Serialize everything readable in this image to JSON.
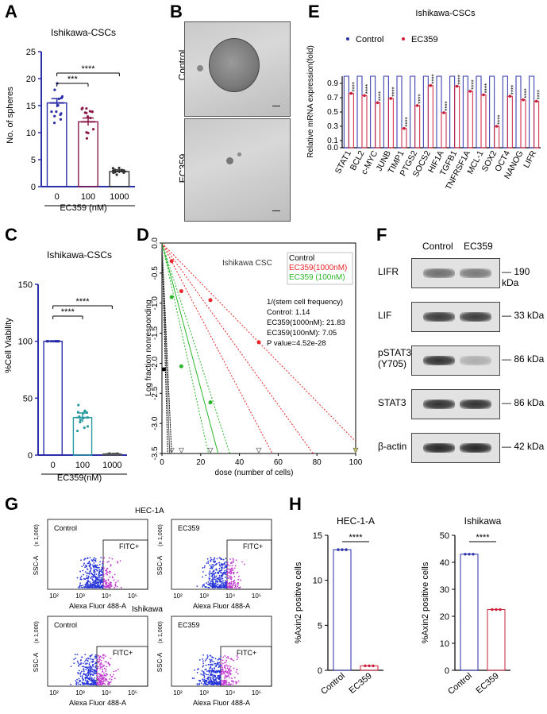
{
  "panel_labels": {
    "A": "A",
    "B": "B",
    "C": "C",
    "D": "D",
    "E": "E",
    "F": "F",
    "G": "G",
    "H": "H"
  },
  "panel_a": {
    "chart_data": {
      "type": "bar",
      "title": "Ishikawa-CSCs",
      "ylabel": "No. of spheres",
      "xlabel": "EC359 (nM)",
      "categories": [
        "0",
        "100",
        "1000"
      ],
      "values": [
        15.5,
        12.0,
        2.8
      ],
      "errors": [
        0.8,
        0.7,
        0.3
      ],
      "ylim": [
        0,
        25
      ],
      "yticks": [
        "0",
        "5",
        "10",
        "15",
        "20",
        "25"
      ],
      "colors": [
        "#2b2fa8",
        "#8b1a4a",
        "#333333"
      ],
      "significance": [
        {
          "pair": "0-100",
          "label": "***"
        },
        {
          "pair": "0-1000",
          "label": "****"
        }
      ]
    }
  },
  "panel_b": {
    "labels": [
      "Control",
      "EC359"
    ]
  },
  "panel_c": {
    "chart_data": {
      "type": "bar",
      "title": "Ishikawa-CSCs",
      "ylabel": "%Cell Viability",
      "xlabel": "EC359(nM)",
      "categories": [
        "0",
        "100",
        "1000"
      ],
      "values": [
        100,
        33,
        1
      ],
      "errors": [
        0,
        4,
        0
      ],
      "ylim": [
        0,
        150
      ],
      "yticks": [
        "0",
        "50",
        "100",
        "150"
      ],
      "colors": [
        "#2b2fa8",
        "#2a9aa0",
        "#555555"
      ],
      "significance": [
        {
          "pair": "0-100",
          "label": "****"
        },
        {
          "pair": "0-1000",
          "label": "****"
        }
      ]
    }
  },
  "panel_d": {
    "chart_data": {
      "type": "line",
      "title": "Ishikawa CSC",
      "xlabel": "dose (number of cells)",
      "ylabel": "Log fraction nonresponding",
      "xlim": [
        0,
        100
      ],
      "ylim": [
        -3.5,
        0
      ],
      "xticks": [
        "0",
        "20",
        "40",
        "60",
        "80",
        "100"
      ],
      "yticks": [
        "0.0",
        "-0.5",
        "-1.0",
        "-1.5",
        "-2.0",
        "-2.5",
        "-3.0",
        "-3.5"
      ],
      "legend": [
        {
          "label": "Control",
          "color": "#000000"
        },
        {
          "label": "EC359(1000nM)",
          "color": "#e8272a"
        },
        {
          "label": "EC359 (100nM)",
          "color": "#2ab52a"
        }
      ],
      "annotation": [
        "1/(stem cell frequency)",
        "Control: 1.14",
        "EC359(1000nM): 21.83",
        "EC359(100nM): 7.05",
        "P value=4.52e-28"
      ],
      "points": {
        "control": [
          [
            1,
            -2.1
          ]
        ],
        "ec1000": [
          [
            10,
            -0.8
          ],
          [
            25,
            -0.95
          ],
          [
            50,
            -1.65
          ],
          [
            5,
            -0.3
          ]
        ],
        "ec100": [
          [
            5,
            -0.9
          ],
          [
            10,
            -2.05
          ],
          [
            25,
            -2.65
          ]
        ]
      },
      "open_markers": [
        [
          10,
          -3.45
        ],
        [
          25,
          -3.45
        ],
        [
          50,
          -3.45
        ],
        [
          100,
          -3.45
        ],
        [
          5,
          -3.45
        ]
      ]
    }
  },
  "panel_e": {
    "chart_data": {
      "type": "bar",
      "title": "Ishikawa-CSCs",
      "ylabel": "Relative mRNA expression(fold)",
      "categories": [
        "STAT1",
        "BCL2",
        "c-MYC",
        "JUNB",
        "TIMP1",
        "PTGS2",
        "SOCS2",
        "HIF1A",
        "TGFB1",
        "TNFRSF1A",
        "MCL-1",
        "SOX2",
        "OCT4",
        "NANOG",
        "LIFR"
      ],
      "series": [
        {
          "name": "Control",
          "color": "#2b2fa8",
          "values": [
            1,
            1,
            1,
            1,
            1,
            1,
            1,
            1,
            1,
            1,
            1,
            1,
            1,
            1,
            1
          ]
        },
        {
          "name": "EC359",
          "color": "#cc1f3a",
          "values": [
            0.76,
            0.73,
            0.63,
            0.69,
            0.27,
            0.59,
            0.87,
            0.49,
            0.86,
            0.79,
            0.74,
            0.3,
            0.72,
            0.67,
            0.65
          ]
        }
      ],
      "ylim": [
        0,
        1.0
      ],
      "yticks": [
        "0.0",
        "0.1",
        "0.3",
        "0.5",
        "0.7",
        "0.9"
      ],
      "sig": "****"
    }
  },
  "panel_f": {
    "columns": [
      "Control",
      "EC359"
    ],
    "rows": [
      {
        "protein": "LIFR",
        "size": "190 kDa",
        "c": 0.55,
        "e": 0.5
      },
      {
        "protein": "LIF",
        "size": "33 kDa",
        "c": 0.8,
        "e": 0.8
      },
      {
        "protein": "pSTAT3 (Y705)",
        "size": "86 kDa",
        "c": 0.85,
        "e": 0.25
      },
      {
        "protein": "STAT3",
        "size": "86 kDa",
        "c": 0.85,
        "e": 0.85
      },
      {
        "protein": "β-actin",
        "size": "42 kDa",
        "c": 0.9,
        "e": 0.9
      }
    ]
  },
  "panel_g": {
    "top_title": "HEC-1A",
    "bottom_title": "Ishikawa",
    "gate_label": "FITC+",
    "ylabel": "SSC-A",
    "yunit": "(x 1,000)",
    "xlabel": "Alexa Fluor 488-A",
    "xticks": [
      "10²",
      "10³",
      "10⁴",
      "10⁵"
    ],
    "plots": [
      {
        "label": "Control"
      },
      {
        "label": "EC359"
      },
      {
        "label": "Control"
      },
      {
        "label": "EC359"
      }
    ]
  },
  "panel_h": {
    "charts": [
      {
        "title": "HEC-1-A",
        "ylabel": "%Axin2 positive cells",
        "categories": [
          "Control",
          "EC359"
        ],
        "values": [
          13.4,
          0.5
        ],
        "ylim": [
          0,
          15
        ],
        "yticks": [
          "0",
          "5",
          "10",
          "15"
        ],
        "sig": "****"
      },
      {
        "title": "Ishikawa",
        "ylabel": "%Axin2 positive cells",
        "categories": [
          "Control",
          "EC359"
        ],
        "values": [
          43,
          22.5
        ],
        "ylim": [
          0,
          50
        ],
        "yticks": [
          "0",
          "10",
          "20",
          "30",
          "40",
          "50"
        ],
        "sig": "****"
      }
    ]
  }
}
